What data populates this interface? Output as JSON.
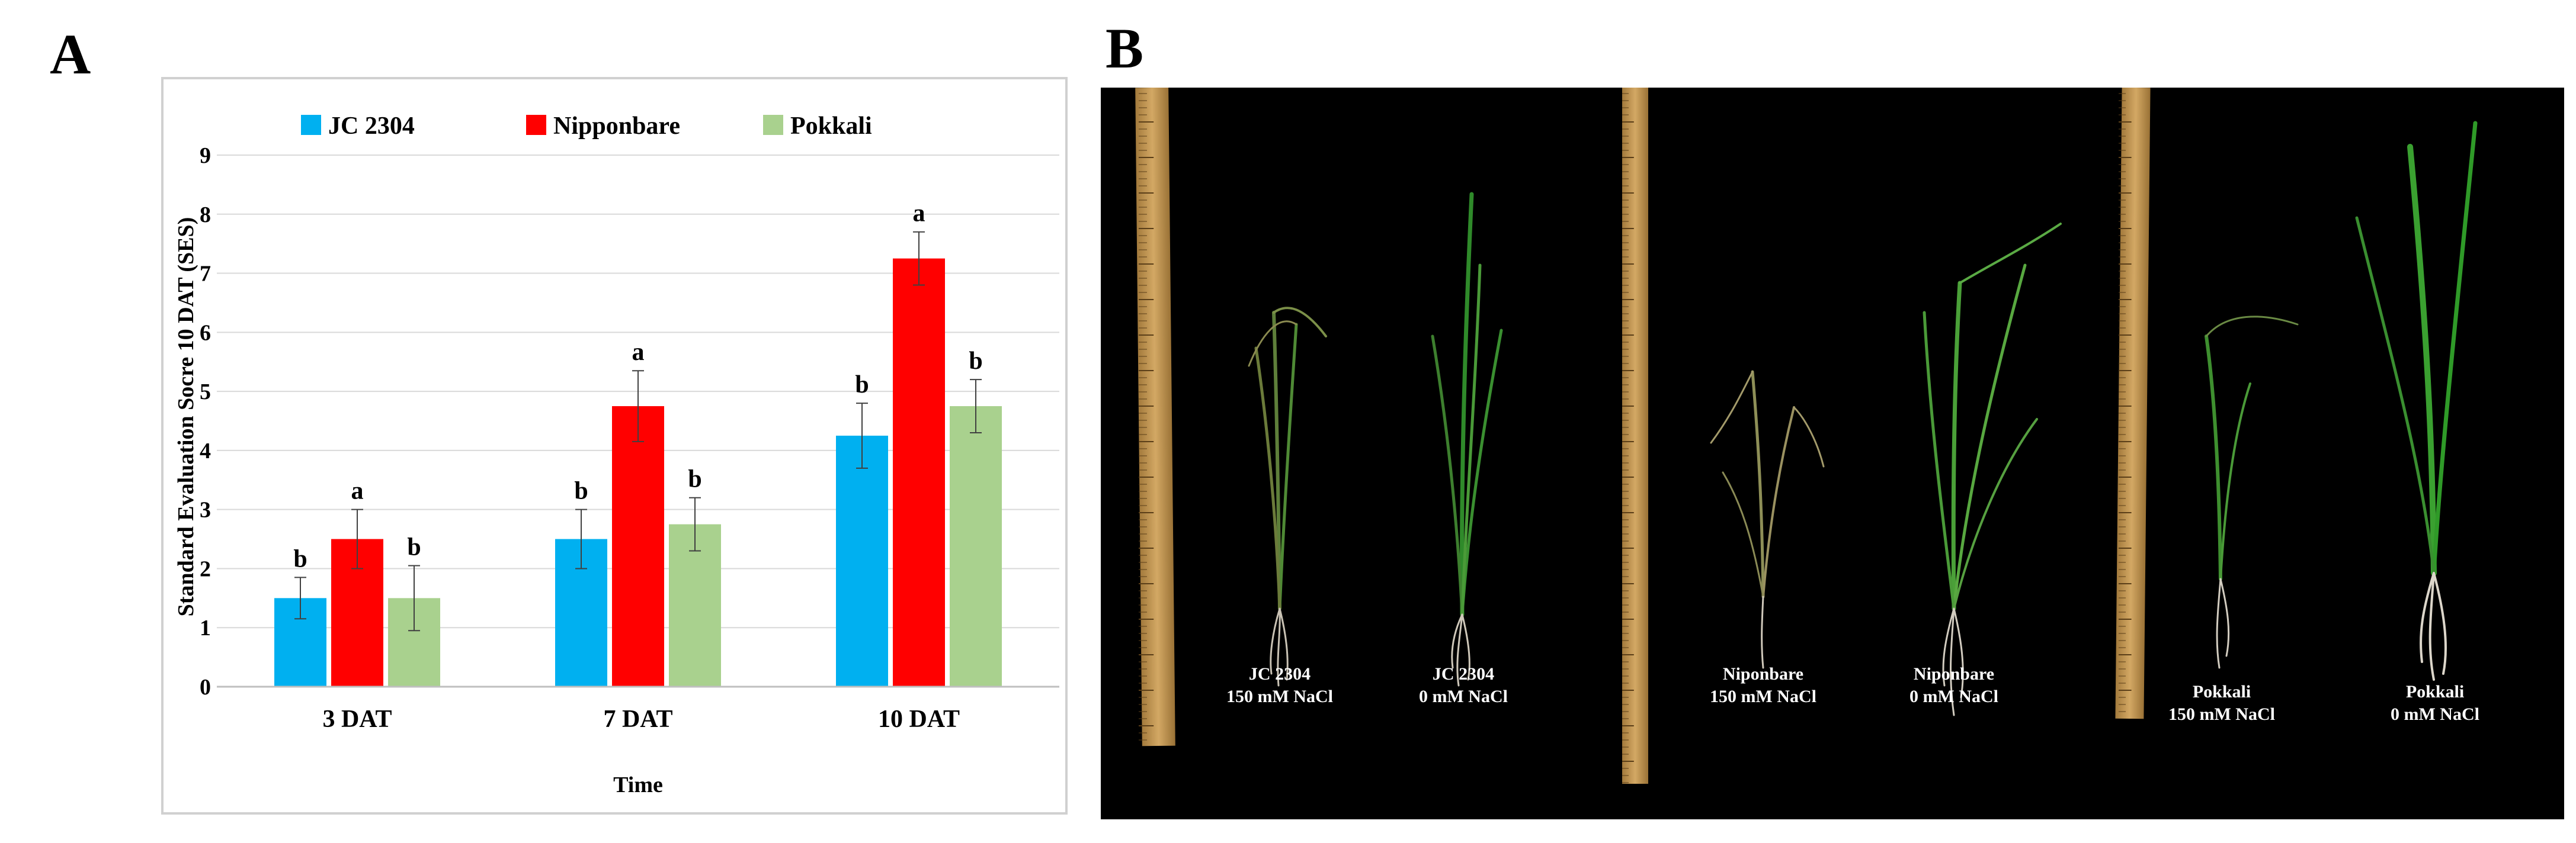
{
  "panel_a": {
    "letter": "A"
  },
  "panel_b": {
    "letter": "B",
    "captions": [
      {
        "name": "JC 2304",
        "treatment": "150 mM NaCl"
      },
      {
        "name": "JC 2304",
        "treatment": "0 mM NaCl"
      },
      {
        "name": "Niponbare",
        "treatment": "150 mM NaCl"
      },
      {
        "name": "Niponbare",
        "treatment": "0 mM NaCl"
      },
      {
        "name": "Pokkali",
        "treatment": "150 mM NaCl"
      },
      {
        "name": "Pokkali",
        "treatment": "0 mM NaCl"
      }
    ]
  },
  "chart_data": {
    "type": "bar",
    "title": "",
    "xlabel": "Time",
    "ylabel": "Standard Evaluation Socre 10 DAT (SES)",
    "categories": [
      "3 DAT",
      "7 DAT",
      "10 DAT"
    ],
    "ylim": [
      0,
      9
    ],
    "yticks": [
      0,
      1,
      2,
      3,
      4,
      5,
      6,
      7,
      8,
      9
    ],
    "grid": true,
    "legend_position": "top",
    "series": [
      {
        "name": "JC 2304",
        "color": "#00B0F0",
        "values": [
          1.5,
          2.5,
          4.25
        ],
        "errors": [
          0.35,
          0.5,
          0.55
        ],
        "labels": [
          "b",
          "b",
          "b"
        ]
      },
      {
        "name": "Nipponbare",
        "color": "#FF0000",
        "values": [
          2.5,
          4.75,
          7.25
        ],
        "errors": [
          0.5,
          0.6,
          0.45
        ],
        "labels": [
          "a",
          "a",
          "a"
        ]
      },
      {
        "name": "Pokkali",
        "color": "#A9D18E",
        "values": [
          1.5,
          2.75,
          4.75
        ],
        "errors": [
          0.55,
          0.45,
          0.45
        ],
        "labels": [
          "b",
          "b",
          "b"
        ]
      }
    ]
  }
}
